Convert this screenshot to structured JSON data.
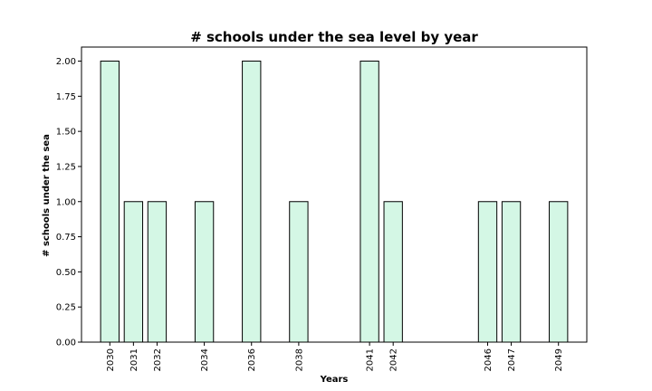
{
  "chart_data": {
    "type": "bar",
    "title": "# schools under the sea level by year",
    "xlabel": "Years",
    "ylabel": "# schools under the sea",
    "x": [
      2030,
      2031,
      2032,
      2034,
      2036,
      2038,
      2041,
      2042,
      2046,
      2047,
      2049
    ],
    "values": [
      2,
      1,
      1,
      1,
      2,
      1,
      2,
      1,
      1,
      1,
      1
    ],
    "xlim": [
      2028.8,
      2050.2
    ],
    "ylim": [
      0,
      2.1
    ],
    "yticks": [
      "0.00",
      "0.25",
      "0.50",
      "0.75",
      "1.00",
      "1.25",
      "1.50",
      "1.75",
      "2.00"
    ],
    "bar_color": "#d4f7e5",
    "edge_color": "#000000",
    "grid": false,
    "legend": "none"
  }
}
